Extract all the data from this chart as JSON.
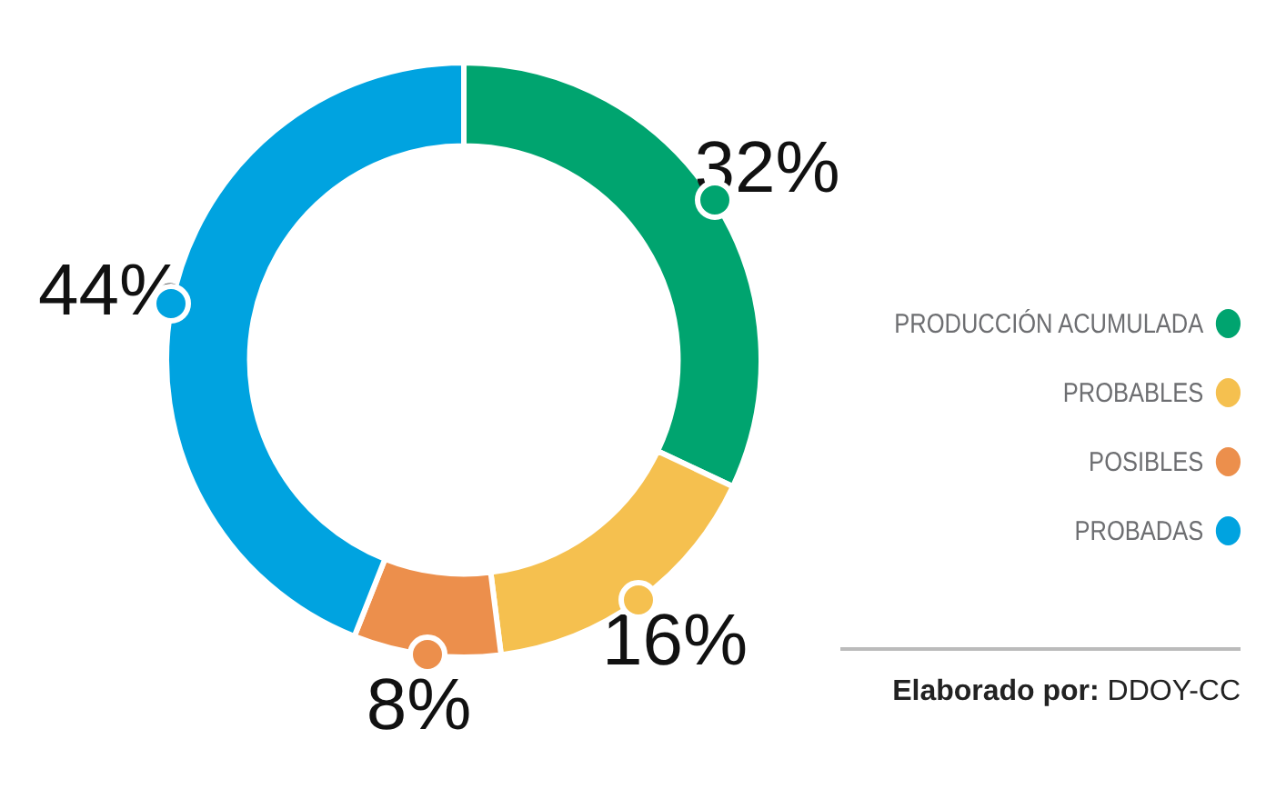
{
  "chart_data": {
    "type": "donut",
    "categories": [
      "PRODUCCIÓN ACUMULADA",
      "PROBABLES",
      "POSIBLES",
      "PROBADAS"
    ],
    "values": [
      32,
      16,
      8,
      44
    ],
    "colors": [
      "#00a46f",
      "#f5c04f",
      "#ec8f4c",
      "#00a3e0"
    ],
    "value_labels": [
      "32%",
      "16%",
      "8%",
      "44%"
    ],
    "legend": "right",
    "annotations": [
      "Elaborado por: DDOY-CC"
    ]
  }
}
